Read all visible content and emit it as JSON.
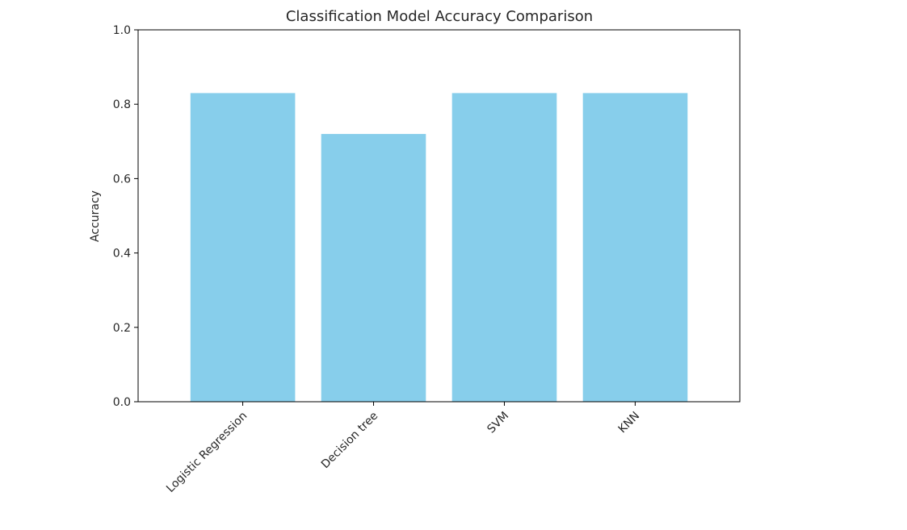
{
  "chart_data": {
    "type": "bar",
    "title": "Classification Model Accuracy Comparison",
    "xlabel": "",
    "ylabel": "Accuracy",
    "categories": [
      "Logistic Regression",
      "Decision tree",
      "SVM",
      "KNN"
    ],
    "values": [
      0.83,
      0.72,
      0.83,
      0.83
    ],
    "ylim": [
      0,
      1.0
    ],
    "yticks": [
      "0.0",
      "0.2",
      "0.4",
      "0.6",
      "0.8",
      "1.0"
    ],
    "bar_color": "#87ceeb",
    "grid": false,
    "legend": "none"
  }
}
